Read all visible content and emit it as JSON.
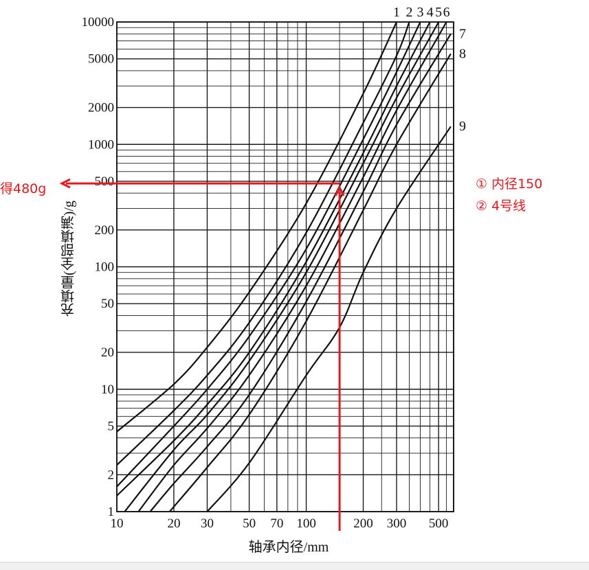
{
  "chart_data": {
    "type": "line",
    "xlabel": "轴承内径/mm",
    "ylabel": "充填量(全部填满)/g",
    "x_scale": "log",
    "y_scale": "log",
    "xlim": [
      10,
      600
    ],
    "ylim": [
      1,
      10000
    ],
    "grid": true,
    "x_ticks": [
      10,
      20,
      30,
      50,
      70,
      100,
      200,
      300,
      500
    ],
    "x_tick_labels": [
      "10",
      "20",
      "30",
      "50",
      "70",
      "100",
      "200",
      "300",
      "500"
    ],
    "y_ticks": [
      1,
      2,
      5,
      10,
      20,
      50,
      100,
      200,
      500,
      1000,
      2000,
      5000,
      10000
    ],
    "y_tick_labels": [
      "1",
      "2",
      "5",
      "10",
      "20",
      "50",
      "100",
      "200",
      "500",
      "1000",
      "2000",
      "5000",
      "10000"
    ],
    "series": [
      {
        "name": "1",
        "x": [
          10,
          20,
          30,
          50,
          100,
          200,
          300
        ],
        "y": [
          4.5,
          11,
          22,
          62,
          330,
          2600,
          10000
        ]
      },
      {
        "name": "2",
        "x": [
          10,
          20,
          30,
          50,
          100,
          200,
          300,
          350
        ],
        "y": [
          2.4,
          6.7,
          13,
          35,
          190,
          1500,
          5300,
          10000
        ]
      },
      {
        "name": "3",
        "x": [
          10,
          20,
          30,
          50,
          100,
          200,
          300,
          400
        ],
        "y": [
          1.6,
          5,
          10,
          27,
          140,
          1100,
          3900,
          10000
        ]
      },
      {
        "name": "4",
        "x": [
          10,
          20,
          30,
          50,
          100,
          200,
          300,
          450
        ],
        "y": [
          1.35,
          3.8,
          7.5,
          20,
          110,
          850,
          3000,
          10000
        ]
      },
      {
        "name": "5",
        "x": [
          11,
          20,
          30,
          50,
          100,
          200,
          300,
          500
        ],
        "y": [
          1,
          3.2,
          6.2,
          17,
          90,
          700,
          2400,
          10000
        ]
      },
      {
        "name": "6",
        "x": [
          13,
          20,
          30,
          50,
          100,
          200,
          300,
          550
        ],
        "y": [
          1,
          2.4,
          4.8,
          13,
          70,
          540,
          1900,
          10000
        ]
      },
      {
        "name": "7",
        "x": [
          15,
          20,
          30,
          50,
          100,
          200,
          300,
          580
        ],
        "y": [
          1,
          1.7,
          3.4,
          9,
          52,
          410,
          1450,
          8000
        ]
      },
      {
        "name": "8",
        "x": [
          19,
          30,
          50,
          100,
          200,
          300,
          580
        ],
        "y": [
          1,
          2.3,
          6.2,
          36,
          290,
          1000,
          5500
        ]
      },
      {
        "name": "9",
        "x": [
          30,
          50,
          100,
          150,
          200,
          300,
          580
        ],
        "y": [
          1,
          2.5,
          13,
          32,
          90,
          300,
          1400
        ]
      }
    ],
    "annotations": {
      "result_label": "得480g",
      "step1_label": "① 内径150",
      "step2_label": "② 4号线",
      "read_x": 150,
      "read_y": 480
    },
    "colors": {
      "curves": "#111111",
      "grid": "#1a1a1a",
      "annotation": "#e8171b"
    }
  }
}
